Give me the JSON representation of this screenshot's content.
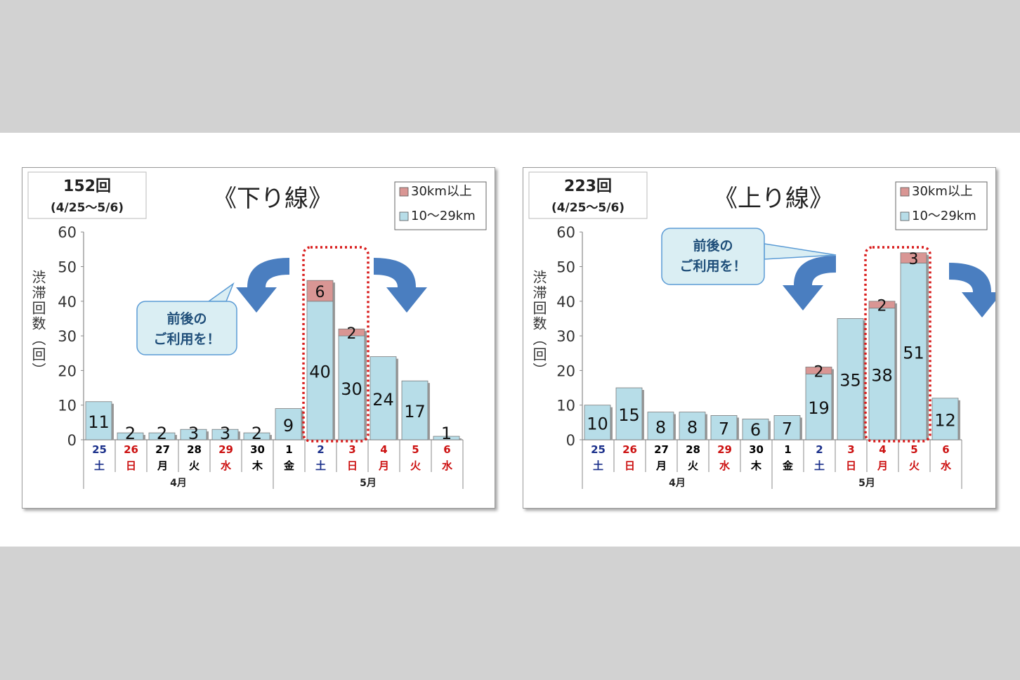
{
  "chart_data": [
    {
      "type": "bar",
      "stacked": true,
      "title": "《下り線》",
      "total_box": {
        "total": "152回",
        "period": "(4/25～5/6)"
      },
      "ylabel": "渋滞回数（回）",
      "ylim": [
        0,
        60
      ],
      "yticks": [
        "0",
        "10",
        "20",
        "30",
        "40",
        "50",
        "60"
      ],
      "legend": {
        "placement": "top-right",
        "entries": [
          "30km以上",
          "10～29km"
        ]
      },
      "categories": [
        {
          "day": "25",
          "weekday": "土",
          "color": "#1a2f8a"
        },
        {
          "day": "26",
          "weekday": "日",
          "color": "#cc1111"
        },
        {
          "day": "27",
          "weekday": "月",
          "color": "#000000"
        },
        {
          "day": "28",
          "weekday": "火",
          "color": "#000000"
        },
        {
          "day": "29",
          "weekday": "水",
          "color": "#cc1111"
        },
        {
          "day": "30",
          "weekday": "木",
          "color": "#000000"
        },
        {
          "day": "1",
          "weekday": "金",
          "color": "#000000"
        },
        {
          "day": "2",
          "weekday": "土",
          "color": "#1a2f8a"
        },
        {
          "day": "3",
          "weekday": "日",
          "color": "#cc1111"
        },
        {
          "day": "4",
          "weekday": "月",
          "color": "#cc1111"
        },
        {
          "day": "5",
          "weekday": "火",
          "color": "#cc1111"
        },
        {
          "day": "6",
          "weekday": "水",
          "color": "#cc1111"
        }
      ],
      "months": [
        {
          "label": "4月",
          "span": 6
        },
        {
          "label": "5月",
          "span": 6
        }
      ],
      "series": [
        {
          "name": "10～29km",
          "color": "#b7dde8",
          "values": [
            11,
            2,
            2,
            3,
            3,
            2,
            9,
            40,
            30,
            24,
            17,
            1
          ]
        },
        {
          "name": "30km以上",
          "color": "#d99694",
          "values": [
            0,
            0,
            0,
            0,
            0,
            0,
            0,
            6,
            2,
            0,
            0,
            0
          ]
        }
      ],
      "highlight_indices": [
        7,
        8
      ],
      "callout": {
        "line1": "前後の",
        "line2": "ご利用を！"
      },
      "colors": {
        "bar_base": "#b7dde8",
        "bar_top": "#d99694",
        "highlight": "#d91c1c",
        "arrow": "#4a7ec0"
      }
    },
    {
      "type": "bar",
      "stacked": true,
      "title": "《上り線》",
      "total_box": {
        "total": "223回",
        "period": "(4/25～5/6)"
      },
      "ylabel": "渋滞回数（回）",
      "ylim": [
        0,
        60
      ],
      "yticks": [
        "0",
        "10",
        "20",
        "30",
        "40",
        "50",
        "60"
      ],
      "legend": {
        "placement": "top-right",
        "entries": [
          "30km以上",
          "10～29km"
        ]
      },
      "categories": [
        {
          "day": "25",
          "weekday": "土",
          "color": "#1a2f8a"
        },
        {
          "day": "26",
          "weekday": "日",
          "color": "#cc1111"
        },
        {
          "day": "27",
          "weekday": "月",
          "color": "#000000"
        },
        {
          "day": "28",
          "weekday": "火",
          "color": "#000000"
        },
        {
          "day": "29",
          "weekday": "水",
          "color": "#cc1111"
        },
        {
          "day": "30",
          "weekday": "木",
          "color": "#000000"
        },
        {
          "day": "1",
          "weekday": "金",
          "color": "#000000"
        },
        {
          "day": "2",
          "weekday": "土",
          "color": "#1a2f8a"
        },
        {
          "day": "3",
          "weekday": "日",
          "color": "#cc1111"
        },
        {
          "day": "4",
          "weekday": "月",
          "color": "#cc1111"
        },
        {
          "day": "5",
          "weekday": "火",
          "color": "#cc1111"
        },
        {
          "day": "6",
          "weekday": "水",
          "color": "#cc1111"
        }
      ],
      "months": [
        {
          "label": "4月",
          "span": 6
        },
        {
          "label": "5月",
          "span": 6
        }
      ],
      "series": [
        {
          "name": "10～29km",
          "color": "#b7dde8",
          "values": [
            10,
            15,
            8,
            8,
            7,
            6,
            7,
            19,
            35,
            38,
            51,
            12
          ]
        },
        {
          "name": "30km以上",
          "color": "#d99694",
          "values": [
            0,
            0,
            0,
            0,
            0,
            0,
            0,
            2,
            0,
            2,
            3,
            0
          ]
        }
      ],
      "highlight_indices": [
        9,
        10
      ],
      "callout": {
        "line1": "前後の",
        "line2": "ご利用を！"
      },
      "colors": {
        "bar_base": "#b7dde8",
        "bar_top": "#d99694",
        "highlight": "#d91c1c",
        "arrow": "#4a7ec0"
      }
    }
  ]
}
